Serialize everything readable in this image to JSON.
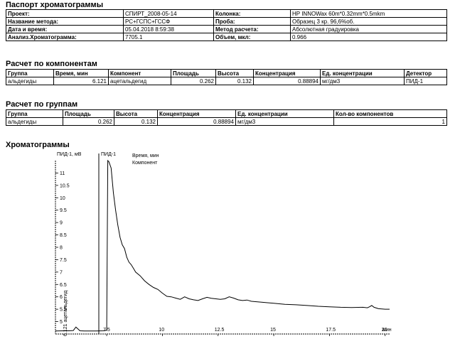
{
  "passport": {
    "title": "Паспорт хроматограммы",
    "rows": [
      {
        "l1": "Проект:",
        "v1": "СПИРТ_2008-05-14",
        "l2": "Колонка:",
        "v2": "HP INNOWax 60m*0.32mm*0.5mkm"
      },
      {
        "l1": "Название метода:",
        "v1": "РС+ГСПС+ГССФ",
        "l2": "Проба:",
        "v2": "Образец 3 кр. 96,6%об."
      },
      {
        "l1": "Дата и время:",
        "v1": "05.04.2018 8:59:38",
        "l2": "Метод расчета:",
        "v2": "Абсолютная градуировка"
      },
      {
        "l1": "Анализ.Хроматограмма:",
        "v1": "7705.1",
        "l2": "Объем, мкл:",
        "v2": "0.966"
      }
    ]
  },
  "components": {
    "title": "Расчет по компонентам",
    "headers": [
      "Группа",
      "Время, мин",
      "Компонент",
      "Площадь",
      "Высота",
      "Концентрация",
      "Ед. концентрации",
      "Детектор"
    ],
    "rows": [
      [
        "альдегиды",
        "6.121",
        "ацетальдегид",
        "0.262",
        "0.132",
        "0.88894",
        "мг/дм3",
        "ПИД-1"
      ]
    ]
  },
  "groups": {
    "title": "Расчет по группам",
    "headers": [
      "Группа",
      "Площадь",
      "Высота",
      "Концентрация",
      "Ед. концентрации",
      "Кол-во компонентов"
    ],
    "rows": [
      [
        "альдегиды",
        "0.262",
        "0.132",
        "0.88894",
        "мг/дм3",
        "1"
      ]
    ]
  },
  "chromatograms": {
    "title": "Хроматограммы",
    "y_axis_label": "ПИД-1, мВ",
    "detector_label": "ПИД-1",
    "legend_line1": "Время, мин",
    "legend_line2": "Компонент",
    "peak_label": "6.121 ацетальдегид",
    "x_axis_unit": "мин"
  },
  "chart_data": {
    "type": "line",
    "xlabel": "мин",
    "ylabel": "ПИД-1, мВ",
    "xlim": [
      5.2,
      20.2
    ],
    "ylim": [
      4.5,
      11.5
    ],
    "x_ticks": [
      7.5,
      10,
      12.5,
      15,
      17.5,
      20
    ],
    "y_ticks": [
      5,
      5.5,
      6,
      6.5,
      7,
      7.5,
      8,
      8.5,
      9,
      9.5,
      10,
      10.5,
      11
    ],
    "series": [
      {
        "x": [
          5.2,
          5.6,
          5.8,
          6.0,
          6.12,
          6.3,
          6.5,
          7.0,
          7.4,
          7.5,
          7.55,
          7.6,
          7.7,
          7.8,
          7.9,
          8.0,
          8.1,
          8.2,
          8.3,
          8.4,
          8.5,
          8.6,
          8.7,
          8.8,
          9.0,
          9.2,
          9.4,
          9.6,
          9.8,
          10.0,
          10.2,
          10.4,
          10.6,
          10.8,
          11.0,
          11.2,
          11.4,
          11.6,
          11.8,
          12.0,
          12.2,
          12.4,
          12.6,
          12.8,
          13.0,
          13.2,
          13.4,
          13.6,
          13.8,
          14.0,
          14.5,
          15.0,
          15.5,
          16.0,
          16.5,
          17.0,
          17.5,
          18.0,
          18.5,
          19.0,
          19.2,
          19.3,
          19.4,
          19.5,
          19.7,
          20.0,
          20.2
        ],
        "y": [
          4.62,
          4.63,
          4.63,
          4.64,
          4.78,
          4.63,
          4.62,
          4.62,
          4.63,
          4.66,
          11.5,
          11.45,
          11.2,
          10.2,
          9.5,
          8.9,
          8.4,
          8.1,
          7.95,
          7.6,
          7.4,
          7.3,
          7.15,
          7.0,
          6.85,
          6.65,
          6.5,
          6.38,
          6.3,
          6.15,
          6.02,
          6.0,
          5.95,
          5.9,
          6.0,
          5.92,
          5.88,
          5.85,
          5.92,
          5.98,
          5.94,
          5.92,
          5.9,
          5.92,
          6.0,
          5.95,
          5.88,
          5.85,
          5.87,
          5.82,
          5.78,
          5.74,
          5.7,
          5.68,
          5.65,
          5.62,
          5.6,
          5.58,
          5.57,
          5.58,
          5.56,
          5.6,
          5.65,
          5.58,
          5.52,
          5.5,
          5.5
        ]
      }
    ]
  }
}
